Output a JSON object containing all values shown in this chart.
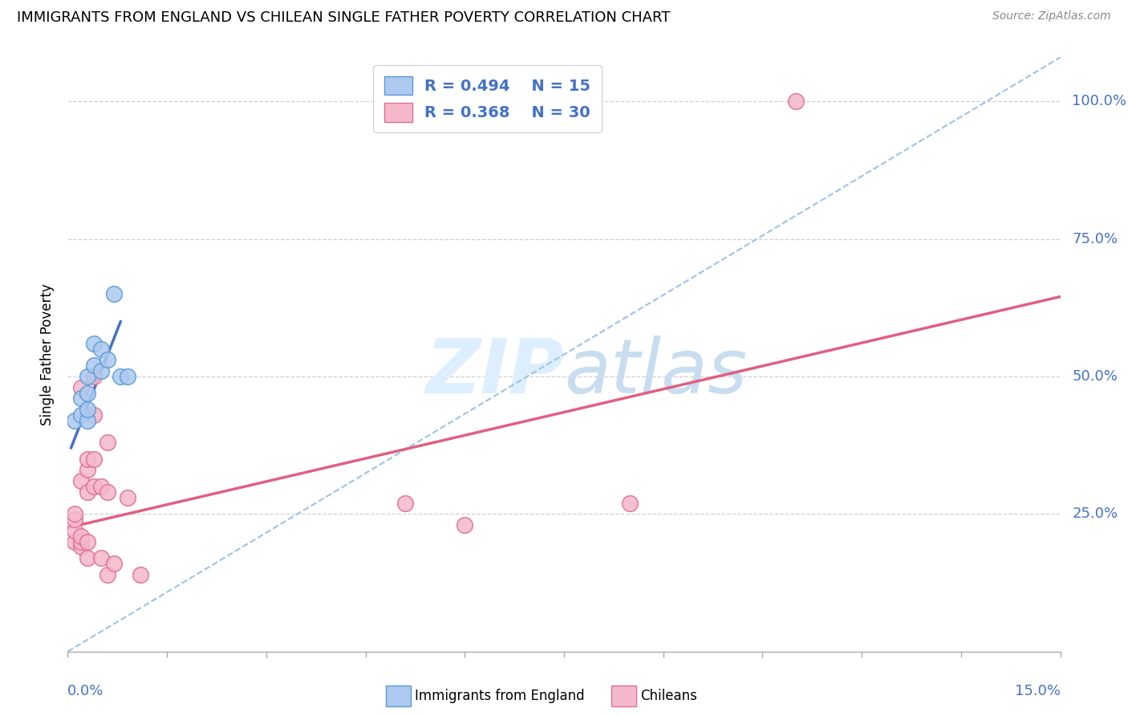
{
  "title": "IMMIGRANTS FROM ENGLAND VS CHILEAN SINGLE FATHER POVERTY CORRELATION CHART",
  "source": "Source: ZipAtlas.com",
  "ylabel": "Single Father Poverty",
  "right_yticks": [
    "100.0%",
    "75.0%",
    "50.0%",
    "25.0%"
  ],
  "right_ytick_vals": [
    1.0,
    0.75,
    0.5,
    0.25
  ],
  "legend_blue_r": "R = 0.494",
  "legend_blue_n": "N = 15",
  "legend_pink_r": "R = 0.368",
  "legend_pink_n": "N = 30",
  "blue_scatter_color": "#adc9ef",
  "blue_edge_color": "#5b9bd5",
  "pink_scatter_color": "#f4b8ca",
  "pink_edge_color": "#e07090",
  "blue_line_color": "#4472c4",
  "pink_line_color": "#e06080",
  "dash_line_color": "#9dc3e6",
  "grid_color": "#d0d0d0",
  "watermark_color": "#ddeeff",
  "label_color": "#4472c4",
  "blue_points_x": [
    0.001,
    0.002,
    0.002,
    0.003,
    0.003,
    0.003,
    0.003,
    0.004,
    0.004,
    0.005,
    0.005,
    0.006,
    0.007,
    0.008,
    0.009
  ],
  "blue_points_y": [
    0.42,
    0.43,
    0.46,
    0.42,
    0.44,
    0.47,
    0.5,
    0.52,
    0.56,
    0.51,
    0.55,
    0.53,
    0.65,
    0.5,
    0.5
  ],
  "pink_points_x": [
    0.001,
    0.001,
    0.001,
    0.001,
    0.002,
    0.002,
    0.002,
    0.002,
    0.002,
    0.003,
    0.003,
    0.003,
    0.003,
    0.003,
    0.004,
    0.004,
    0.004,
    0.004,
    0.005,
    0.005,
    0.006,
    0.006,
    0.006,
    0.007,
    0.009,
    0.011,
    0.051,
    0.06,
    0.085,
    0.11
  ],
  "pink_points_y": [
    0.2,
    0.22,
    0.24,
    0.25,
    0.19,
    0.2,
    0.21,
    0.31,
    0.48,
    0.17,
    0.2,
    0.29,
    0.33,
    0.35,
    0.3,
    0.35,
    0.43,
    0.5,
    0.17,
    0.3,
    0.14,
    0.29,
    0.38,
    0.16,
    0.28,
    0.14,
    0.27,
    0.23,
    0.27,
    1.0
  ],
  "xlim": [
    0.0,
    0.15
  ],
  "ylim": [
    0.0,
    1.08
  ],
  "blue_trend_x": [
    0.0005,
    0.008
  ],
  "blue_trend_y": [
    0.37,
    0.6
  ],
  "pink_trend_x": [
    0.0,
    0.15
  ],
  "pink_trend_y": [
    0.225,
    0.645
  ],
  "dash_trend_x": [
    0.0,
    0.15
  ],
  "dash_trend_y": [
    0.0,
    1.08
  ],
  "xtick_positions": [
    0.0,
    0.015,
    0.03,
    0.045,
    0.06,
    0.075,
    0.09,
    0.105,
    0.12,
    0.135,
    0.15
  ],
  "ytick_positions": [
    0.0,
    0.25,
    0.5,
    0.75,
    1.0
  ]
}
